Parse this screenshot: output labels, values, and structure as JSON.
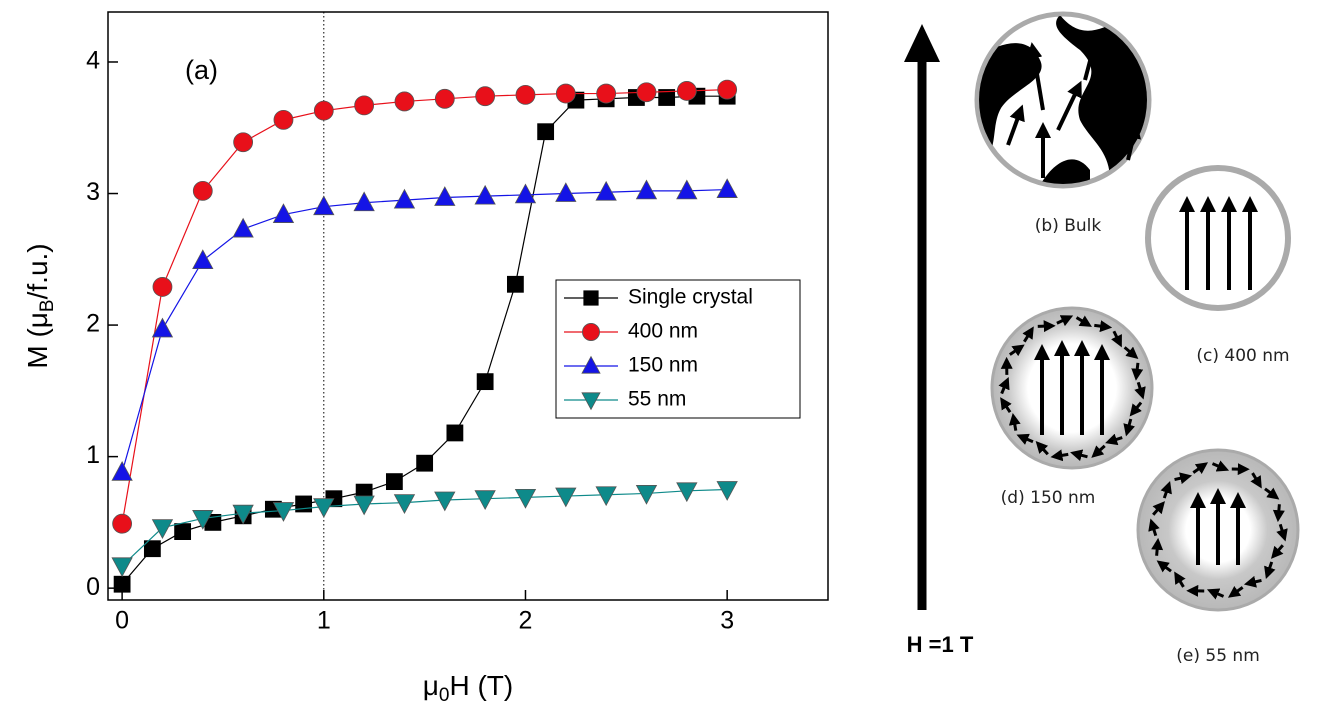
{
  "chart_data": {
    "type": "line",
    "annotation": "(a)",
    "xlabel_parts": [
      "μ",
      "0",
      "H (T)"
    ],
    "ylabel_parts": [
      "M (μ",
      "B",
      "/f.u.)"
    ],
    "xlim": [
      -0.07,
      3.5
    ],
    "ylim": [
      -0.09,
      4.38
    ],
    "xticks": [
      0,
      1,
      2,
      3
    ],
    "yticks": [
      0,
      1,
      2,
      3,
      4
    ],
    "reference_line_x": 1,
    "legend": "center-right",
    "series": [
      {
        "name": "Single crystal",
        "color": "#000000",
        "marker": "square",
        "x": [
          0,
          0.15,
          0.3,
          0.45,
          0.6,
          0.75,
          0.9,
          1.05,
          1.2,
          1.35,
          1.5,
          1.65,
          1.8,
          1.95,
          2.1,
          2.25,
          2.4,
          2.55,
          2.7,
          2.85,
          3.0
        ],
        "values": [
          0.03,
          0.3,
          0.43,
          0.5,
          0.55,
          0.6,
          0.64,
          0.68,
          0.73,
          0.81,
          0.95,
          1.18,
          1.57,
          2.31,
          3.47,
          3.71,
          3.72,
          3.73,
          3.73,
          3.74,
          3.74
        ]
      },
      {
        "name": "400 nm",
        "color": "#e8101a",
        "marker": "circle",
        "x": [
          0,
          0.2,
          0.4,
          0.6,
          0.8,
          1.0,
          1.2,
          1.4,
          1.6,
          1.8,
          2.0,
          2.2,
          2.4,
          2.6,
          2.8,
          3.0
        ],
        "values": [
          0.49,
          2.29,
          3.02,
          3.39,
          3.56,
          3.63,
          3.67,
          3.7,
          3.72,
          3.74,
          3.75,
          3.76,
          3.76,
          3.77,
          3.78,
          3.79
        ]
      },
      {
        "name": "150 nm",
        "color": "#1414e6",
        "marker": "triangle-up",
        "x": [
          0,
          0.2,
          0.4,
          0.6,
          0.8,
          1.0,
          1.2,
          1.4,
          1.6,
          1.8,
          2.0,
          2.2,
          2.4,
          2.6,
          2.8,
          3.0
        ],
        "values": [
          0.88,
          1.97,
          2.49,
          2.73,
          2.84,
          2.9,
          2.93,
          2.95,
          2.97,
          2.98,
          2.99,
          3.0,
          3.01,
          3.02,
          3.02,
          3.03
        ]
      },
      {
        "name": "55 nm",
        "color": "#0e8a8a",
        "marker": "triangle-down",
        "x": [
          0,
          0.2,
          0.4,
          0.6,
          0.8,
          1.0,
          1.2,
          1.4,
          1.6,
          1.8,
          2.0,
          2.2,
          2.4,
          2.6,
          2.8,
          3.0
        ],
        "values": [
          0.17,
          0.46,
          0.53,
          0.57,
          0.59,
          0.62,
          0.64,
          0.65,
          0.67,
          0.68,
          0.69,
          0.7,
          0.71,
          0.72,
          0.74,
          0.75
        ]
      }
    ]
  },
  "diagram": {
    "field_label": "H =1 T",
    "panels": [
      "(b) Bulk",
      "(c) 400 nm",
      "(d) 150 nm",
      "(e) 55 nm"
    ]
  }
}
